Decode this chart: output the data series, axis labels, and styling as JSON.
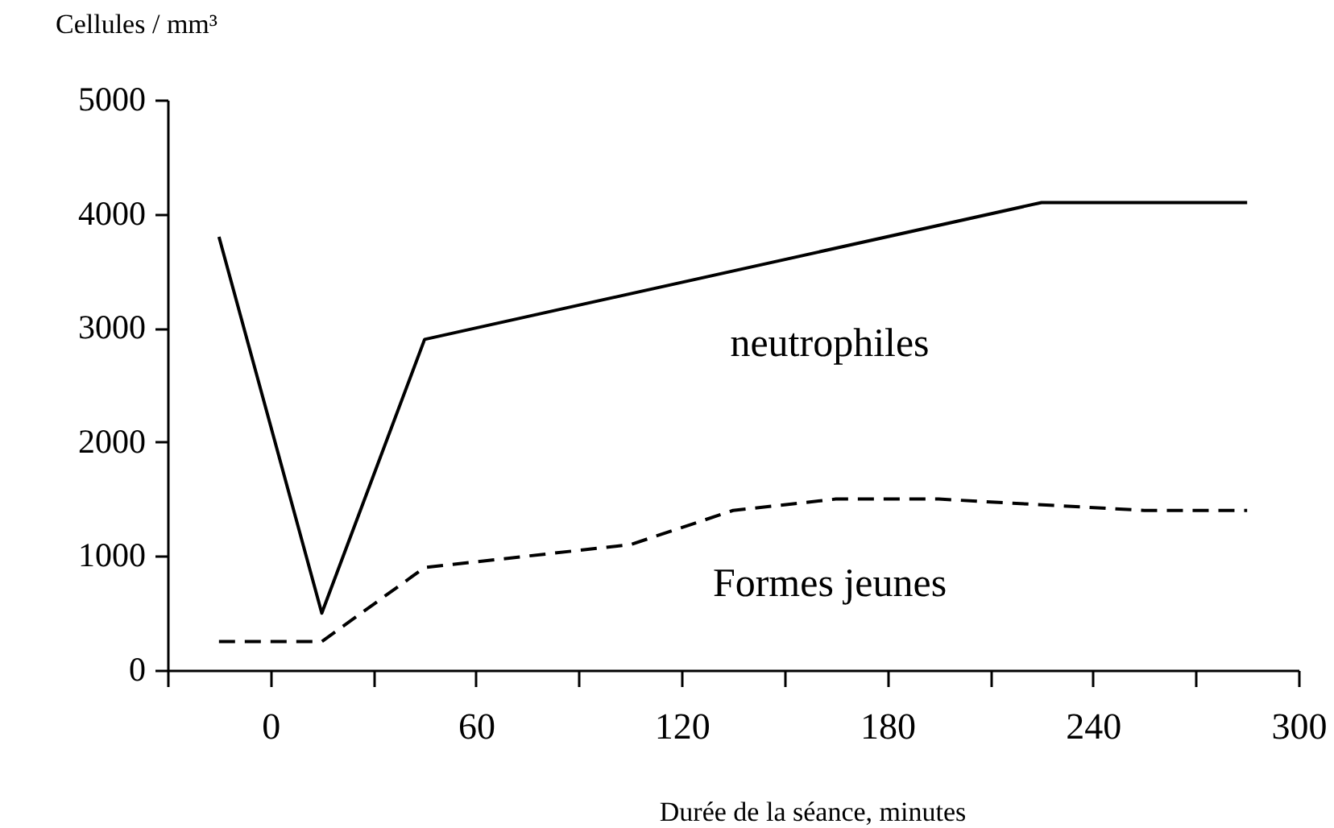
{
  "chart_data": {
    "type": "line",
    "xlabel": "Durée de la séance, minutes",
    "ylabel": "Cellules / mm³",
    "xlim": [
      -30,
      300
    ],
    "xticks": [
      {
        "value": -30,
        "label": null
      },
      0,
      {
        "value": 30,
        "label": null
      },
      60,
      {
        "value": 90,
        "label": null
      },
      120,
      {
        "value": 150,
        "label": null
      },
      180,
      {
        "value": 210,
        "label": null
      },
      240,
      {
        "value": 270,
        "label": null
      },
      300
    ],
    "ylim": [
      0,
      5000
    ],
    "yticks": [
      0,
      1000,
      2000,
      3000,
      4000,
      5000
    ],
    "grid": false,
    "marker": "none",
    "series": [
      {
        "name": "neutrophiles",
        "color": "#000000",
        "line_style": "solid",
        "x": [
          -15,
          15,
          45,
          225,
          285
        ],
        "values": [
          3800,
          500,
          2900,
          4100,
          4100
        ]
      },
      {
        "name": "Formes jeunes",
        "color": "#000000",
        "line_style": "dashed",
        "x": [
          -15,
          15,
          45,
          105,
          135,
          165,
          195,
          255,
          285
        ],
        "values": [
          250,
          250,
          900,
          1100,
          1400,
          1500,
          1500,
          1400,
          1400
        ]
      }
    ]
  }
}
